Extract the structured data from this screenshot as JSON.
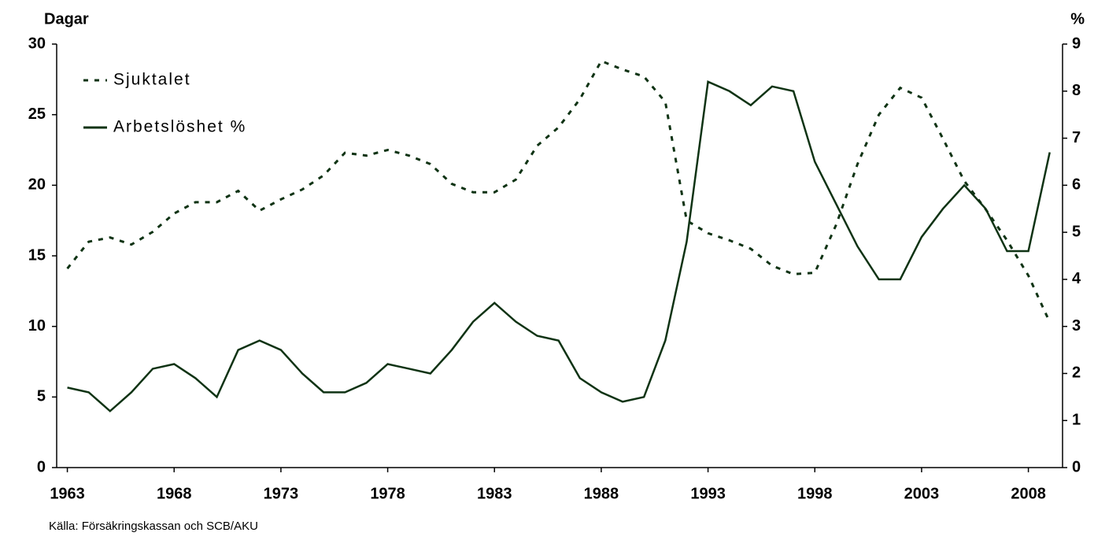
{
  "chart_data": {
    "type": "line",
    "y_label": "Dagar",
    "y2_label": "%",
    "source": "Källa: Försäkringskassan och SCB/AKU",
    "x": [
      1963,
      1964,
      1965,
      1966,
      1967,
      1968,
      1969,
      1970,
      1971,
      1972,
      1973,
      1974,
      1975,
      1976,
      1977,
      1978,
      1979,
      1980,
      1981,
      1982,
      1983,
      1984,
      1985,
      1986,
      1987,
      1988,
      1989,
      1990,
      1991,
      1992,
      1993,
      1994,
      1995,
      1996,
      1997,
      1998,
      1999,
      2000,
      2001,
      2002,
      2003,
      2004,
      2005,
      2006,
      2007,
      2008,
      2009
    ],
    "series": [
      {
        "name": "Sjuktalet",
        "color": "#0f3314",
        "line_style": "dotted",
        "values": [
          14.1,
          16.0,
          16.3,
          15.8,
          16.7,
          18.0,
          18.8,
          18.8,
          19.6,
          18.2,
          19.0,
          19.7,
          20.7,
          22.3,
          22.1,
          22.5,
          22.1,
          21.5,
          20.1,
          19.5,
          19.5,
          20.4,
          22.8,
          24.1,
          26.1,
          28.8,
          28.2,
          27.7,
          25.9,
          17.5,
          16.6,
          16.1,
          15.5,
          14.3,
          13.7,
          13.8,
          17.2,
          21.5,
          25.0,
          26.9,
          26.2,
          23.3,
          20.3,
          18.3,
          16.1,
          13.6,
          10.3
        ]
      },
      {
        "name": "Arbetslöshet %",
        "color": "#0f3314",
        "line_style": "solid",
        "axis": "y2",
        "values": [
          1.7,
          1.6,
          1.2,
          1.6,
          2.1,
          2.2,
          1.9,
          1.5,
          2.5,
          2.7,
          2.5,
          2.0,
          1.6,
          1.6,
          1.8,
          2.2,
          2.1,
          2.0,
          2.5,
          3.1,
          3.5,
          3.1,
          2.8,
          2.7,
          1.9,
          1.6,
          1.4,
          1.5,
          2.7,
          4.8,
          8.2,
          8.0,
          7.7,
          8.1,
          8.0,
          6.5,
          5.6,
          4.7,
          4.0,
          4.0,
          4.9,
          5.5,
          6.0,
          5.5,
          4.6,
          4.6,
          6.7
        ]
      }
    ],
    "xlim": [
      1962.5,
      2009.6
    ],
    "xticks": [
      1963,
      1968,
      1973,
      1978,
      1983,
      1988,
      1993,
      1998,
      2003,
      2008
    ],
    "ylim": [
      0,
      30
    ],
    "yticks": [
      0,
      5,
      10,
      15,
      20,
      25,
      30
    ],
    "y2lim": [
      0,
      9
    ],
    "y2ticks": [
      0,
      1,
      2,
      3,
      4,
      5,
      6,
      7,
      8,
      9
    ],
    "legend": "upper left",
    "grid": false
  }
}
